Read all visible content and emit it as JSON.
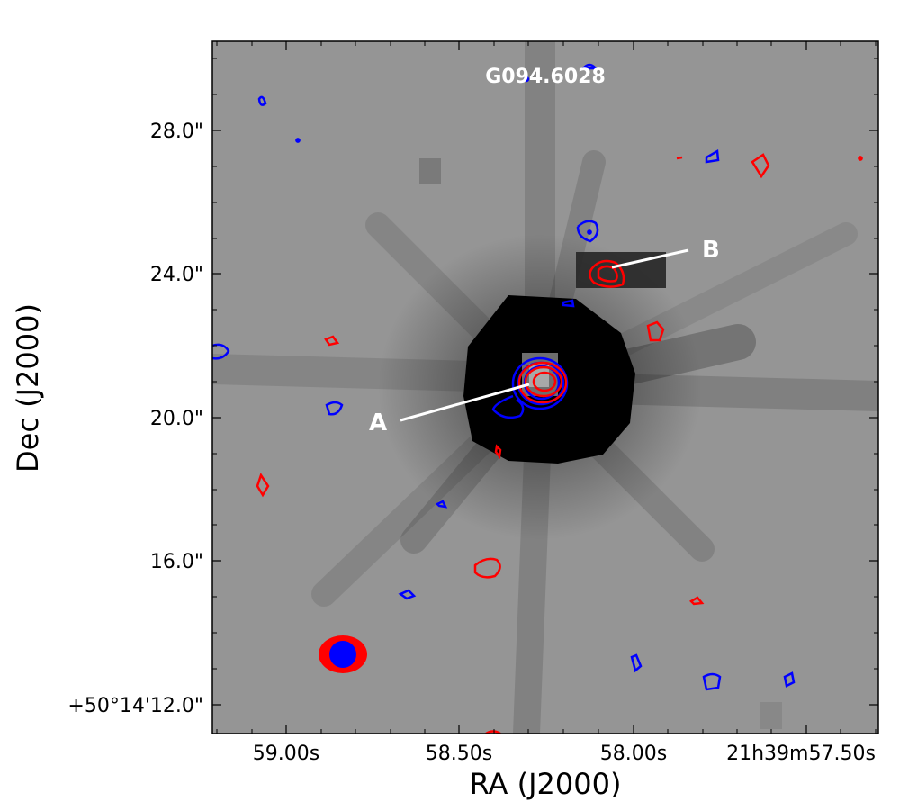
{
  "figure": {
    "title": "G094.6028",
    "xlabel": "RA (J2000)",
    "ylabel": "Dec (J2000)",
    "x_ticks": [
      "59.00s",
      "58.50s",
      "58.00s",
      "21h39m57.50s"
    ],
    "y_ticks": [
      "28.0\"",
      "24.0\"",
      "20.0\"",
      "16.0\"",
      "+50°14'12.0\""
    ],
    "sources": [
      {
        "label": "A"
      },
      {
        "label": "B"
      }
    ],
    "colors": {
      "background_gray": "#959595",
      "contour_red": "#ff0000",
      "contour_blue": "#0000ff",
      "label_white": "#ffffff"
    }
  }
}
